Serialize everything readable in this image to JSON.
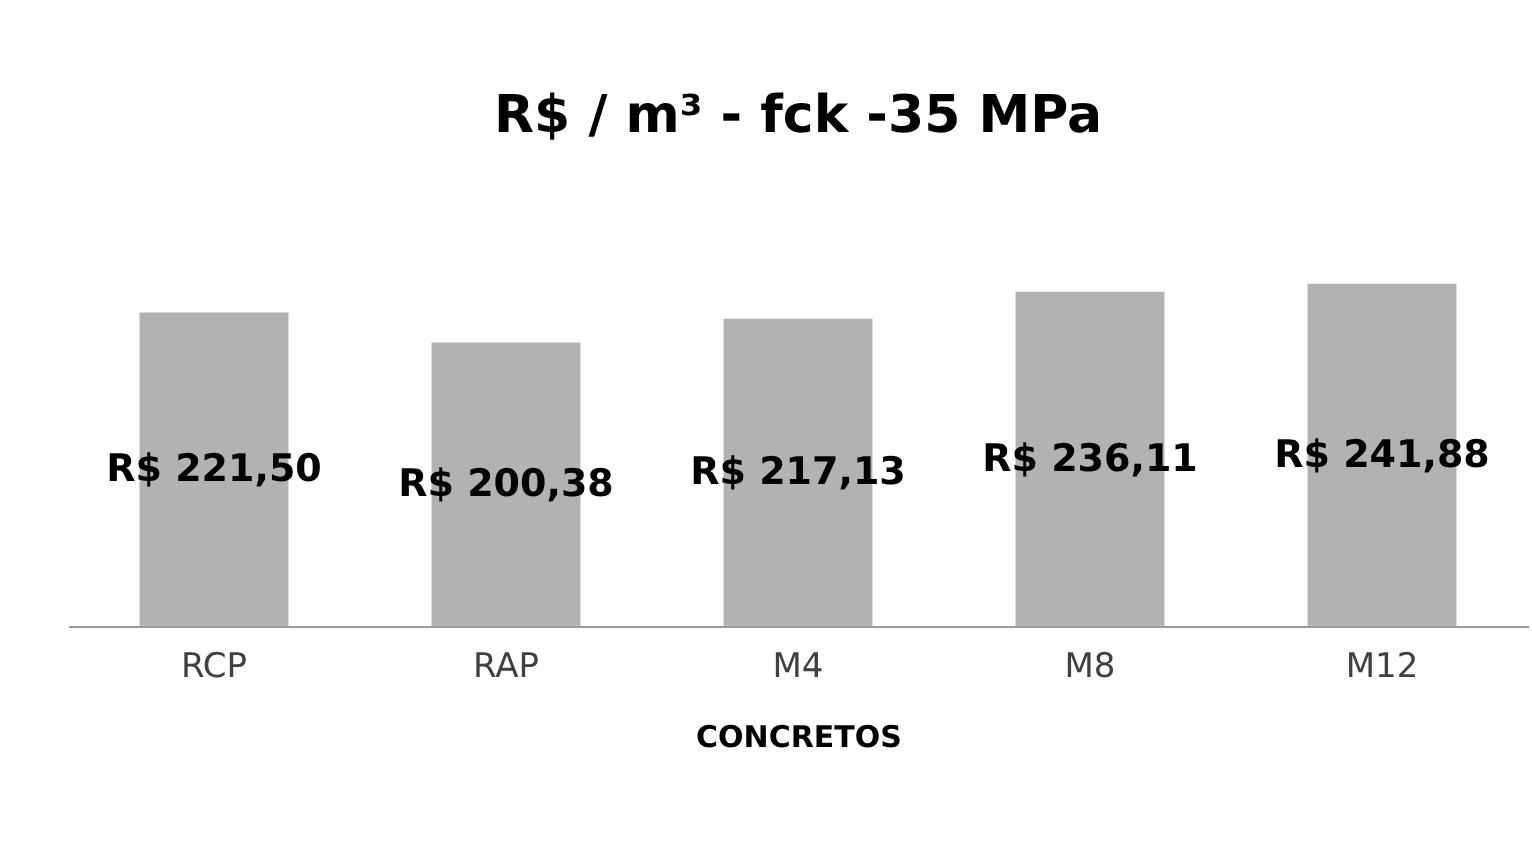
{
  "chart_data": {
    "type": "bar",
    "title": "R$ / m³ - fck -35 MPa",
    "xlabel": "CONCRETOS",
    "categories": [
      "RCP",
      "RAP",
      "M4",
      "M8",
      "M12"
    ],
    "values": [
      221.5,
      200.38,
      217.13,
      236.11,
      241.88
    ],
    "value_labels": [
      "R$ 221,50",
      "R$ 200,38",
      "R$ 217,13",
      "R$ 236,11",
      "R$ 241,88"
    ],
    "color": "#b2b2b2",
    "tick_labels": "x"
  }
}
